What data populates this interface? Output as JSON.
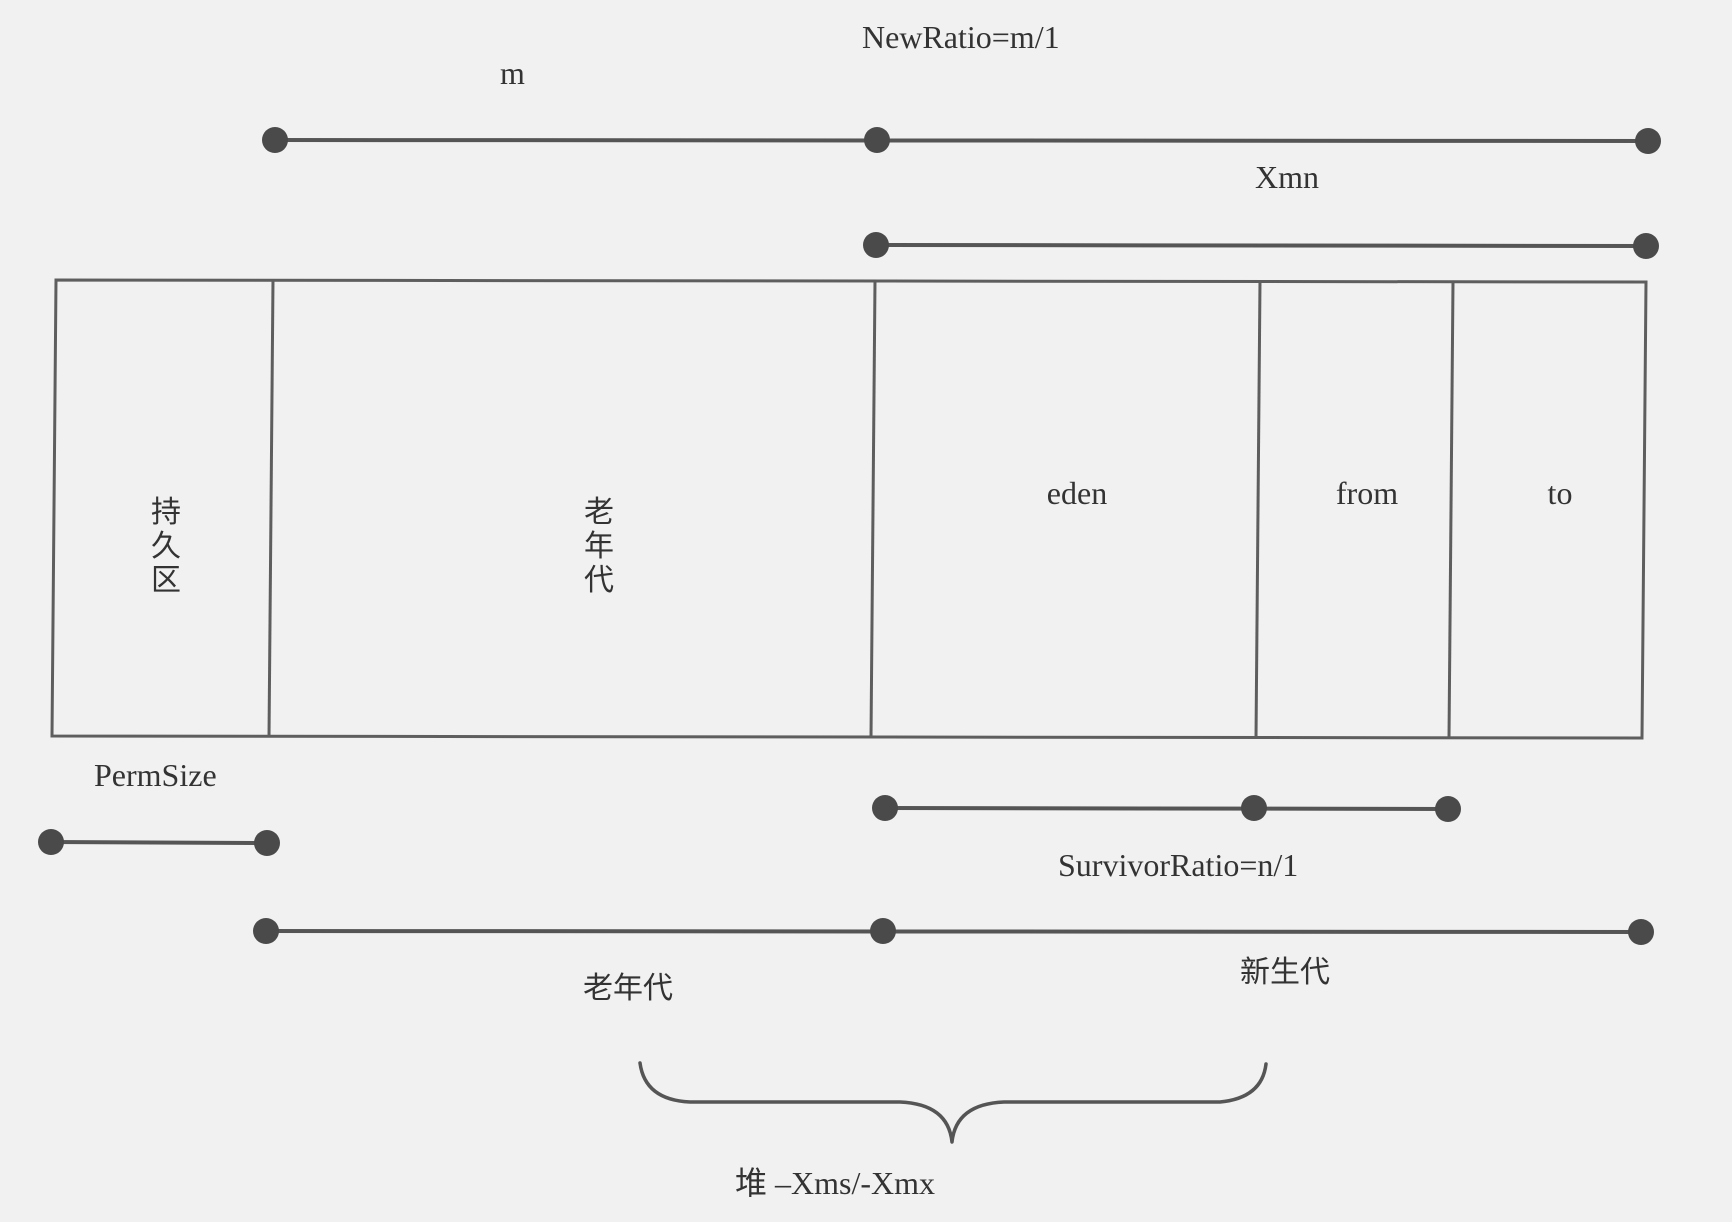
{
  "heap_regions": {
    "perm": {
      "label_line1": "持",
      "label_line2": "久",
      "label_line3": "区"
    },
    "old": {
      "label_line1": "老",
      "label_line2": "年",
      "label_line3": "代"
    },
    "eden": {
      "label": "eden"
    },
    "from": {
      "label": "from"
    },
    "to": {
      "label": "to"
    }
  },
  "annotations": {
    "new_ratio": "NewRatio=m/1",
    "m": "m",
    "xmn": "Xmn",
    "perm_size": "PermSize",
    "survivor_ratio": "SurvivorRatio=n/1",
    "old_gen": "老年代",
    "young_gen": "新生代",
    "heap": "堆 –Xms/-Xmx"
  },
  "colors": {
    "background": "#f1f1f1",
    "line": "#555555",
    "dot": "#4a4a4a",
    "text": "#333333"
  }
}
